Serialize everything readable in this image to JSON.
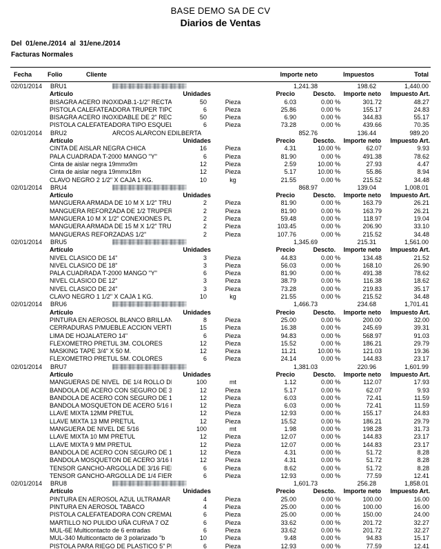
{
  "report": {
    "company": "BASE DEMO SA DE CV",
    "title": "Diarios de Ventas",
    "period_line": "Del  01/ene./2014  al  31/ene./2014",
    "section": "Facturas Normales"
  },
  "colors": {
    "text": "#000000",
    "background": "#ffffff",
    "redaction_gray": "#b2b6ba"
  },
  "table": {
    "columns": {
      "fecha": "Fecha",
      "folio": "Folio",
      "cliente": "Cliente",
      "importe_neto": "Importe neto",
      "impuestos": "Impuestos",
      "total": "Total"
    },
    "item_columns": {
      "articulo": "Artículo",
      "unidades": "Unidades",
      "precio": "Precio",
      "descto": "Descto.",
      "importe_neto": "Importe neto",
      "impuesto_art": "Impuesto Art."
    }
  },
  "groups": [
    {
      "date": "02/01/2014",
      "folio": "BRU1",
      "client": "",
      "client_redacted": true,
      "importe_neto": "1,241.38",
      "impuestos": "198.62",
      "total": "1,440.00",
      "items": [
        {
          "name": "BISAGRA ACERO INOXIDAB.1-1/2\" RECTANG",
          "qty": "50",
          "unit": "Pieza",
          "price": "6.03",
          "disc": "0.00 %",
          "net": "301.72",
          "tax": "48.27"
        },
        {
          "name": "PISTOLA CALEFATEADORA TRUPER TIPO E",
          "qty": "6",
          "unit": "Pieza",
          "price": "25.86",
          "disc": "0.00 %",
          "net": "155.17",
          "tax": "24.83"
        },
        {
          "name": "BISAGRA ACERO INOXIDABLE DE 2\" RECTAN",
          "qty": "50",
          "unit": "Pieza",
          "price": "6.90",
          "disc": "0.00 %",
          "net": "344.83",
          "tax": "55.17"
        },
        {
          "name": "PISTOLA CALEFATEADORA TIPO ESQUELET",
          "qty": "6",
          "unit": "Pieza",
          "price": "73.28",
          "disc": "0.00 %",
          "net": "439.66",
          "tax": "70.35"
        }
      ]
    },
    {
      "date": "02/01/2014",
      "folio": "BRU2",
      "client": "ARCOS ALARCON EDILBERTA",
      "client_redacted": false,
      "importe_neto": "852.76",
      "impuestos": "136.44",
      "total": "989.20",
      "items": [
        {
          "name": "CINTA DE AISLAR NEGRA CHICA",
          "qty": "16",
          "unit": "Pieza",
          "price": "4.31",
          "disc": "10.00 %",
          "net": "62.07",
          "tax": "9.93"
        },
        {
          "name": "PALA CUADRADA T-2000 MANGO \"Y\"",
          "qty": "6",
          "unit": "Pieza",
          "price": "81.90",
          "disc": "0.00 %",
          "net": "491.38",
          "tax": "78.62"
        },
        {
          "name": "Cinta de aislar negra 19mmx9m",
          "qty": "12",
          "unit": "Pieza",
          "price": "2.59",
          "disc": "10.00 %",
          "net": "27.93",
          "tax": "4.47"
        },
        {
          "name": "Cinta de aislar negra 19mmx18m",
          "qty": "12",
          "unit": "Pieza",
          "price": "5.17",
          "disc": "10.00 %",
          "net": "55.86",
          "tax": "8.94"
        },
        {
          "name": "CLAVO NEGRO 2 1/2\" X CAJA 1 KG.",
          "qty": "10",
          "unit": "kg",
          "price": "21.55",
          "disc": "0.00 %",
          "net": "215.52",
          "tax": "34.48"
        }
      ]
    },
    {
      "date": "02/01/2014",
      "folio": "BRU4",
      "client": "",
      "client_redacted": true,
      "importe_neto": "868.97",
      "impuestos": "139.04",
      "total": "1,008.01",
      "items": [
        {
          "name": "MANGUERA ARMADA DE 10 M X 1/2\" TRUPE",
          "qty": "2",
          "unit": "Pieza",
          "price": "81.90",
          "disc": "0.00 %",
          "net": "163.79",
          "tax": "26.21"
        },
        {
          "name": "MANGUERA REFORZADA DE 1/2 TRUPER",
          "qty": "2",
          "unit": "Pieza",
          "price": "81.90",
          "disc": "0.00 %",
          "net": "163.79",
          "tax": "26.21"
        },
        {
          "name": "MANGUERA 10 M X 1/2\" CONEXIONES PLAS",
          "qty": "2",
          "unit": "Pieza",
          "price": "59.48",
          "disc": "0.00 %",
          "net": "118.97",
          "tax": "19.04"
        },
        {
          "name": "MANGUERA ARMADA DE 15 M X 1/2\" TRUPE",
          "qty": "2",
          "unit": "Pieza",
          "price": "103.45",
          "disc": "0.00 %",
          "net": "206.90",
          "tax": "33.10"
        },
        {
          "name": "MANGUERAS REFORZADAS 1/2\"",
          "qty": "2",
          "unit": "Pieza",
          "price": "107.76",
          "disc": "0.00 %",
          "net": "215.52",
          "tax": "34.48"
        }
      ]
    },
    {
      "date": "02/01/2014",
      "folio": "BRU5",
      "client": "",
      "client_redacted": true,
      "importe_neto": "1,345.69",
      "impuestos": "215.31",
      "total": "1,561.00",
      "items": [
        {
          "name": "NIVEL CLASICO DE 14\"",
          "qty": "3",
          "unit": "Pieza",
          "price": "44.83",
          "disc": "0.00 %",
          "net": "134.48",
          "tax": "21.52"
        },
        {
          "name": "NIVEL CLASICO DE 18\"",
          "qty": "3",
          "unit": "Pieza",
          "price": "56.03",
          "disc": "0.00 %",
          "net": "168.10",
          "tax": "26.90"
        },
        {
          "name": "PALA CUADRADA T-2000 MANGO \"Y\"",
          "qty": "6",
          "unit": "Pieza",
          "price": "81.90",
          "disc": "0.00 %",
          "net": "491.38",
          "tax": "78.62"
        },
        {
          "name": "NIVEL CLASICO DE 12\"",
          "qty": "3",
          "unit": "Pieza",
          "price": "38.79",
          "disc": "0.00 %",
          "net": "116.38",
          "tax": "18.62"
        },
        {
          "name": "NIVEL CLASICO DE 24\"",
          "qty": "3",
          "unit": "Pieza",
          "price": "73.28",
          "disc": "0.00 %",
          "net": "219.83",
          "tax": "35.17"
        },
        {
          "name": "CLAVO NEGRO 1 1/2\" X CAJA 1 KG.",
          "qty": "10",
          "unit": "kg",
          "price": "21.55",
          "disc": "0.00 %",
          "net": "215.52",
          "tax": "34.48"
        }
      ]
    },
    {
      "date": "02/01/2014",
      "folio": "BRU6",
      "client": "",
      "client_redacted": true,
      "importe_neto": "1,466.73",
      "impuestos": "234.68",
      "total": "1,701.41",
      "items": [
        {
          "name": "PINTURA EN AEROSOL BLANCO BRILLANTE",
          "qty": "8",
          "unit": "Pieza",
          "price": "25.00",
          "disc": "0.00 %",
          "net": "200.00",
          "tax": "32.00"
        },
        {
          "name": "CERRADURAS P/MUEBLE ACCION VERTICA",
          "qty": "15",
          "unit": "Pieza",
          "price": "16.38",
          "disc": "0.00 %",
          "net": "245.69",
          "tax": "39.31"
        },
        {
          "name": "LIMA DE HOJALATERO 14\"",
          "qty": "6",
          "unit": "Pieza",
          "price": "94.83",
          "disc": "0.00 %",
          "net": "568.97",
          "tax": "91.03"
        },
        {
          "name": "FLEXOMETRO PRETUL 3M. COLORES",
          "qty": "12",
          "unit": "Pieza",
          "price": "15.52",
          "disc": "0.00 %",
          "net": "186.21",
          "tax": "29.79"
        },
        {
          "name": "MASKING TAPE 3/4\" X 50 M.",
          "qty": "12",
          "unit": "Pieza",
          "price": "11.21",
          "disc": "10.00 %",
          "net": "121.03",
          "tax": "19.36"
        },
        {
          "name": "FLEXOMETRO PRETUL 5M. COLORES",
          "qty": "6",
          "unit": "Pieza",
          "price": "24.14",
          "disc": "0.00 %",
          "net": "144.83",
          "tax": "23.17"
        }
      ]
    },
    {
      "date": "02/01/2014",
      "folio": "BRU7",
      "client": "",
      "client_redacted": true,
      "importe_neto": "1,381.03",
      "impuestos": "220.96",
      "total": "1,601.99",
      "items": [
        {
          "name": "MANGUERAS DE NIVEL  DE 1/4 ROLLO DE",
          "qty": "100",
          "unit": "mt",
          "price": "1.12",
          "disc": "0.00 %",
          "net": "112.07",
          "tax": "17.93"
        },
        {
          "name": "BANDOLA DE ACERO CON SEGURO DE 3/1",
          "qty": "12",
          "unit": "Pieza",
          "price": "5.17",
          "disc": "0.00 %",
          "net": "62.07",
          "tax": "9.93"
        },
        {
          "name": "BANDOLA DE ACERO CON SEGURO DE 1/4",
          "qty": "12",
          "unit": "Pieza",
          "price": "6.03",
          "disc": "0.00 %",
          "net": "72.41",
          "tax": "11.59"
        },
        {
          "name": "BANDOLA MOSQUETON DE ACERO 5/16 FIE",
          "qty": "12",
          "unit": "Pieza",
          "price": "6.03",
          "disc": "0.00 %",
          "net": "72.41",
          "tax": "11.59"
        },
        {
          "name": "LLAVE MIXTA 12MM PRETUL",
          "qty": "12",
          "unit": "Pieza",
          "price": "12.93",
          "disc": "0.00 %",
          "net": "155.17",
          "tax": "24.83"
        },
        {
          "name": "LLAVE MIXTA 13 MM PRETUL",
          "qty": "12",
          "unit": "Pieza",
          "price": "15.52",
          "disc": "0.00 %",
          "net": "186.21",
          "tax": "29.79"
        },
        {
          "name": "MANGUERA DE NIVEL DE 5/16",
          "qty": "100",
          "unit": "mt",
          "price": "1.98",
          "disc": "0.00 %",
          "net": "198.28",
          "tax": "31.73"
        },
        {
          "name": "LLAVE MIXTA 10 MM PRETUL",
          "qty": "12",
          "unit": "Pieza",
          "price": "12.07",
          "disc": "0.00 %",
          "net": "144.83",
          "tax": "23.17"
        },
        {
          "name": "LLAVE MIXTA 9 MM PRETUL",
          "qty": "12",
          "unit": "Pieza",
          "price": "12.07",
          "disc": "0.00 %",
          "net": "144.83",
          "tax": "23.17"
        },
        {
          "name": "BANDOLA DE ACERO CON SEGURO DE 1/8",
          "qty": "12",
          "unit": "Pieza",
          "price": "4.31",
          "disc": "0.00 %",
          "net": "51.72",
          "tax": "8.28"
        },
        {
          "name": "BANDOLA MOSQUETON DE ACERO 3/16 FIE",
          "qty": "12",
          "unit": "Pieza",
          "price": "4.31",
          "disc": "0.00 %",
          "net": "51.72",
          "tax": "8.28"
        },
        {
          "name": "TENSOR GANCHO-ARGOLLA DE 3/16 FIERO",
          "qty": "6",
          "unit": "Pieza",
          "price": "8.62",
          "disc": "0.00 %",
          "net": "51.72",
          "tax": "8.28"
        },
        {
          "name": "TENSOR GANCHO-ARGOLLA DE 1/4 FIERO",
          "qty": "6",
          "unit": "Pieza",
          "price": "12.93",
          "disc": "0.00 %",
          "net": "77.59",
          "tax": "12.41"
        }
      ]
    },
    {
      "date": "02/01/2014",
      "folio": "BRU8",
      "client": "",
      "client_redacted": true,
      "importe_neto": "1,601.73",
      "impuestos": "256.28",
      "total": "1,858.01",
      "items": [
        {
          "name": "PINTURA EN AEROSOL AZUL ULTRAMAR",
          "qty": "4",
          "unit": "Pieza",
          "price": "25.00",
          "disc": "0.00 %",
          "net": "100.00",
          "tax": "16.00"
        },
        {
          "name": "PINTURA EN AEROSOL TABACO",
          "qty": "4",
          "unit": "Pieza",
          "price": "25.00",
          "disc": "0.00 %",
          "net": "100.00",
          "tax": "16.00"
        },
        {
          "name": "PISTOLA CALEFATEADORA CON CREMALLE",
          "qty": "6",
          "unit": "Pieza",
          "price": "25.00",
          "disc": "0.00 %",
          "net": "150.00",
          "tax": "24.00"
        },
        {
          "name": "MARTILLO NO PULIDO UÑA CURVA 7 OZ",
          "qty": "6",
          "unit": "Pieza",
          "price": "33.62",
          "disc": "0.00 %",
          "net": "201.72",
          "tax": "32.27"
        },
        {
          "name": "MUL-6E Multicontacto de 6 entradas",
          "qty": "6",
          "unit": "Pieza",
          "price": "33.62",
          "disc": "0.00 %",
          "net": "201.72",
          "tax": "32.27"
        },
        {
          "name": "MUL-340 Multicontacto de 3 polarizado \"b",
          "qty": "10",
          "unit": "Pieza",
          "price": "9.48",
          "disc": "0.00 %",
          "net": "94.83",
          "tax": "15.17"
        },
        {
          "name": "PISTOLA PARA RIEGO DE PLASTICO 5\" PRE",
          "qty": "6",
          "unit": "Pieza",
          "price": "12.93",
          "disc": "0.00 %",
          "net": "77.59",
          "tax": "12.41"
        }
      ]
    }
  ]
}
